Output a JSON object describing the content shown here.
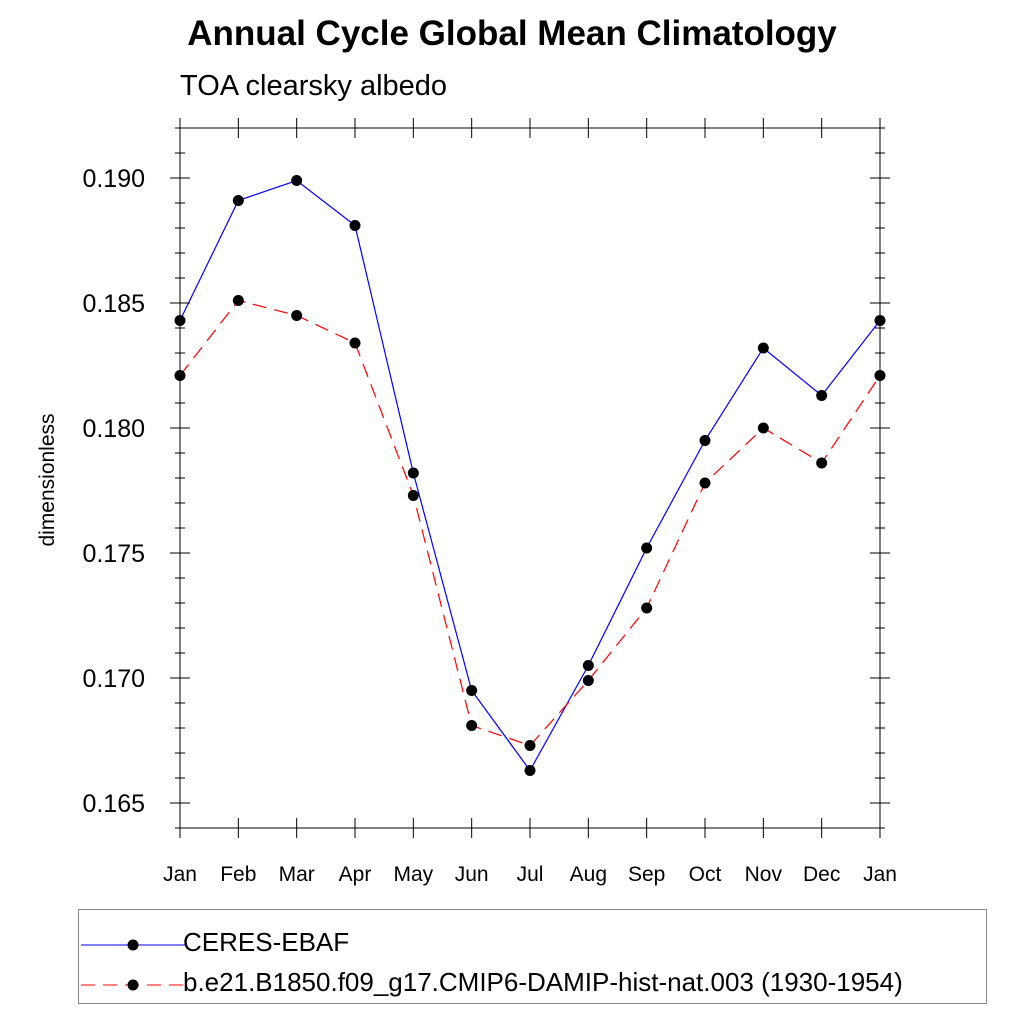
{
  "title": "Annual Cycle Global Mean Climatology",
  "subtitle": "TOA clearsky albedo",
  "chart_data": {
    "type": "line",
    "title": "Annual Cycle Global Mean Climatology",
    "subtitle": "TOA clearsky albedo",
    "xlabel": "",
    "ylabel": "dimensionless",
    "categories": [
      "Jan",
      "Feb",
      "Mar",
      "Apr",
      "May",
      "Jun",
      "Jul",
      "Aug",
      "Sep",
      "Oct",
      "Nov",
      "Dec",
      "Jan"
    ],
    "ylim": [
      0.164,
      0.192
    ],
    "yticks": [
      "0.165",
      "0.170",
      "0.175",
      "0.180",
      "0.185",
      "0.190"
    ],
    "grid": false,
    "legend_position": "bottom",
    "series": [
      {
        "name": "CERES-EBAF",
        "color": "#0000ff",
        "dash": "solid",
        "values": [
          0.1843,
          0.1891,
          0.1899,
          0.1881,
          0.1782,
          0.1695,
          0.1663,
          0.1705,
          0.1752,
          0.1795,
          0.1832,
          0.1813,
          0.1843
        ]
      },
      {
        "name": "b.e21.B1850.f09_g17.CMIP6-DAMIP-hist-nat.003 (1930-1954)",
        "color": "#ff0000",
        "dash": "dashed",
        "values": [
          0.1821,
          0.1851,
          0.1845,
          0.1834,
          0.1773,
          0.1681,
          0.1673,
          0.1699,
          0.1728,
          0.1778,
          0.18,
          0.1786,
          0.1821
        ]
      }
    ]
  }
}
